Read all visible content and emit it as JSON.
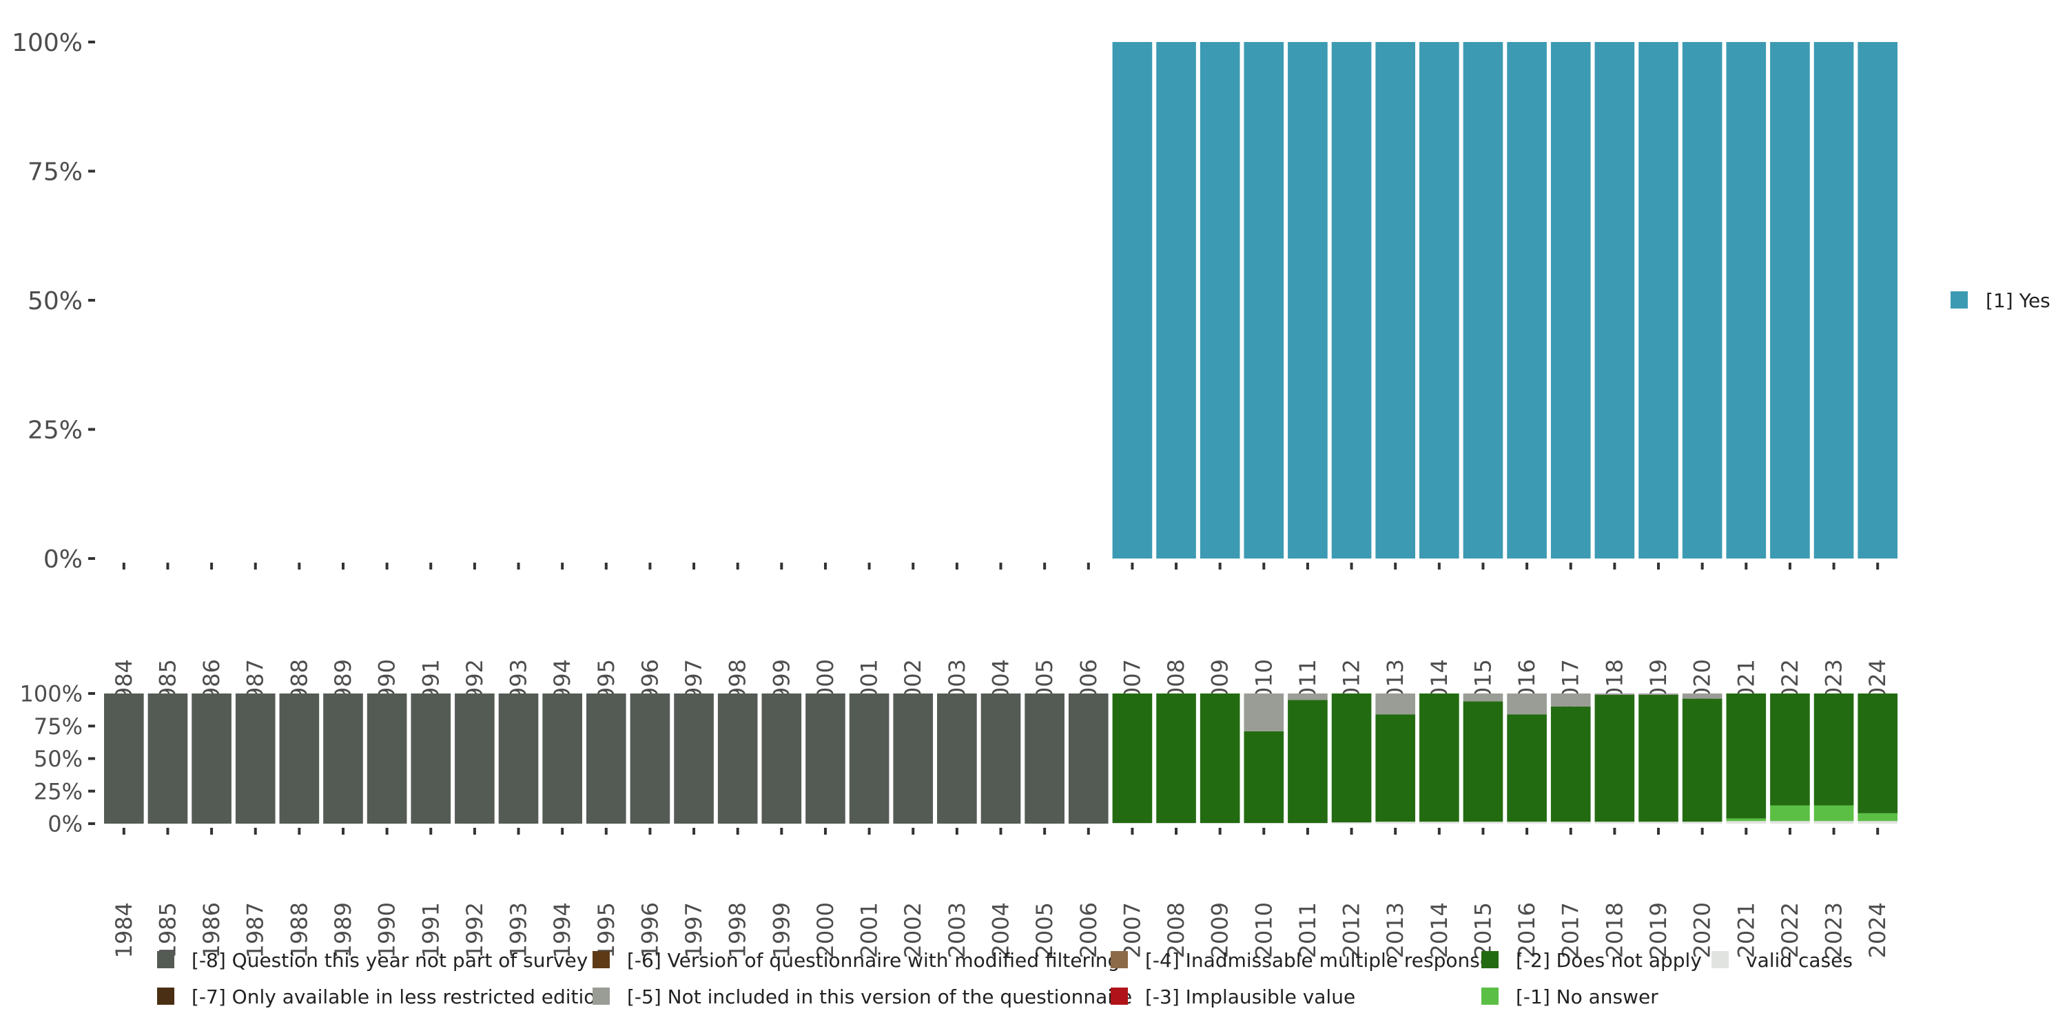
{
  "chart_data": [
    {
      "type": "bar",
      "stacked": true,
      "panel": "valid-responses",
      "categories": [
        "1984",
        "1985",
        "1986",
        "1987",
        "1988",
        "1989",
        "1990",
        "1991",
        "1992",
        "1993",
        "1994",
        "1995",
        "1996",
        "1997",
        "1998",
        "1999",
        "2000",
        "2001",
        "2002",
        "2003",
        "2004",
        "2005",
        "2006",
        "2007",
        "2008",
        "2009",
        "2010",
        "2011",
        "2012",
        "2013",
        "2014",
        "2015",
        "2016",
        "2017",
        "2018",
        "2019",
        "2020",
        "2021",
        "2022",
        "2023",
        "2024"
      ],
      "series": [
        {
          "name": "[1] Yes",
          "color": "#3d9ab3",
          "values": [
            null,
            null,
            null,
            null,
            null,
            null,
            null,
            null,
            null,
            null,
            null,
            null,
            null,
            null,
            null,
            null,
            null,
            null,
            null,
            null,
            null,
            null,
            null,
            100,
            100,
            100,
            100,
            100,
            100,
            100,
            100,
            100,
            100,
            100,
            100,
            100,
            100,
            100,
            100,
            100,
            100
          ]
        }
      ],
      "y_ticks": [
        "0%",
        "25%",
        "50%",
        "75%",
        "100%"
      ],
      "ylim": [
        0,
        100
      ],
      "legend_position": "right"
    },
    {
      "type": "bar",
      "stacked": true,
      "panel": "missing-codes",
      "categories": [
        "1984",
        "1985",
        "1986",
        "1987",
        "1988",
        "1989",
        "1990",
        "1991",
        "1992",
        "1993",
        "1994",
        "1995",
        "1996",
        "1997",
        "1998",
        "1999",
        "2000",
        "2001",
        "2002",
        "2003",
        "2004",
        "2005",
        "2006",
        "2007",
        "2008",
        "2009",
        "2010",
        "2011",
        "2012",
        "2013",
        "2014",
        "2015",
        "2016",
        "2017",
        "2018",
        "2019",
        "2020",
        "2021",
        "2022",
        "2023",
        "2024"
      ],
      "series": [
        {
          "name": "valid cases",
          "color": "#e1e3e0",
          "values": [
            0,
            0,
            0,
            0,
            0,
            0,
            0,
            0,
            0,
            0,
            0,
            0,
            0,
            0,
            0,
            0,
            0,
            0,
            0,
            0,
            0,
            0,
            0,
            0.5,
            0.5,
            0.5,
            0.5,
            0.5,
            1,
            1.5,
            1.5,
            1.5,
            1.5,
            1.5,
            1.5,
            1.5,
            1.5,
            2,
            2,
            2,
            2
          ]
        },
        {
          "name": "[-1] No answer",
          "color": "#5bbf45",
          "values": [
            0,
            0,
            0,
            0,
            0,
            0,
            0,
            0,
            0,
            0,
            0,
            0,
            0,
            0,
            0,
            0,
            0,
            0,
            0,
            0,
            0,
            0,
            0,
            0,
            0,
            0,
            0,
            0,
            0,
            0,
            0,
            0,
            0,
            0,
            0,
            0,
            0,
            2,
            12,
            12,
            6
          ]
        },
        {
          "name": "[-2] Does not apply",
          "color": "#236b11",
          "values": [
            0,
            0,
            0,
            0,
            0,
            0,
            0,
            0,
            0,
            0,
            0,
            0,
            0,
            0,
            0,
            0,
            0,
            0,
            0,
            0,
            0,
            0,
            0,
            99.5,
            99.5,
            99.5,
            70.5,
            94.5,
            99,
            82.5,
            98.5,
            92.5,
            82.5,
            88.5,
            97.5,
            97.5,
            94.5,
            96,
            86,
            86,
            92
          ]
        },
        {
          "name": "[-5] Not included in this version of the questionnaire",
          "color": "#9a9c96",
          "values": [
            0,
            0,
            0,
            0,
            0,
            0,
            0,
            0,
            0,
            0,
            0,
            0,
            0,
            0,
            0,
            0,
            0,
            0,
            0,
            0,
            0,
            0,
            0,
            0,
            0,
            0,
            29,
            5,
            0,
            16,
            0,
            6,
            16,
            10,
            1,
            1,
            4,
            0,
            0,
            0,
            0
          ]
        },
        {
          "name": "[-8] Question this year not part of survey",
          "color": "#545b55",
          "values": [
            100,
            100,
            100,
            100,
            100,
            100,
            100,
            100,
            100,
            100,
            100,
            100,
            100,
            100,
            100,
            100,
            100,
            100,
            100,
            100,
            100,
            100,
            100,
            0,
            0,
            0,
            0,
            0,
            0,
            0,
            0,
            0,
            0,
            0,
            0,
            0,
            0,
            0,
            0,
            0,
            0
          ]
        }
      ],
      "y_ticks": [
        "0%",
        "25%",
        "50%",
        "75%",
        "100%"
      ],
      "ylim": [
        0,
        100
      ],
      "legend_position": "bottom"
    }
  ],
  "legend_bottom": [
    {
      "label": "[-8] Question this year not part of survey",
      "color": "#545b55"
    },
    {
      "label": "[-7] Only available in less restricted edition",
      "color": "#4a2f14"
    },
    {
      "label": "[-6] Version of questionnaire with modified filtering",
      "color": "#5e3a17"
    },
    {
      "label": "[-5] Not included in this version of the questionnaire",
      "color": "#9a9c96"
    },
    {
      "label": "[-4] Inadmissable multiple response",
      "color": "#8c6a48"
    },
    {
      "label": "[-3] Implausible value",
      "color": "#b0141a"
    },
    {
      "label": "[-2] Does not apply",
      "color": "#236b11"
    },
    {
      "label": "[-1] No answer",
      "color": "#5bbf45"
    },
    {
      "label": "valid cases",
      "color": "#e1e3e0"
    }
  ]
}
